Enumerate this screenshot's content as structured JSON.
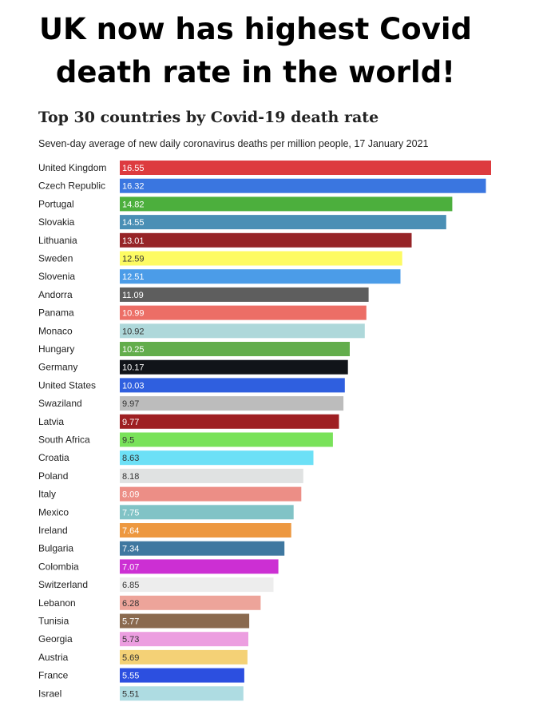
{
  "headline": {
    "line1": "UK now has highest Covid",
    "line2": "death rate in the world!"
  },
  "chart_data": {
    "type": "bar",
    "orientation": "horizontal",
    "title": "Top 30 countries by Covid-19 death rate",
    "subtitle": "Seven-day average of new daily coronavirus deaths per million people, 17 January 2021",
    "xlim": [
      0,
      16.55
    ],
    "grid": false,
    "legend": "none",
    "categories": [
      "United Kingdom",
      "Czech Republic",
      "Portugal",
      "Slovakia",
      "Lithuania",
      "Sweden",
      "Slovenia",
      "Andorra",
      "Panama",
      "Monaco",
      "Hungary",
      "Germany",
      "United States",
      "Swaziland",
      "Latvia",
      "South Africa",
      "Croatia",
      "Poland",
      "Italy",
      "Mexico",
      "Ireland",
      "Bulgaria",
      "Colombia",
      "Switzerland",
      "Lebanon",
      "Tunisia",
      "Georgia",
      "Austria",
      "France",
      "Israel"
    ],
    "values": [
      16.55,
      16.32,
      14.82,
      14.55,
      13.01,
      12.59,
      12.51,
      11.09,
      10.99,
      10.92,
      10.25,
      10.17,
      10.03,
      9.97,
      9.77,
      9.5,
      8.63,
      8.18,
      8.09,
      7.75,
      7.64,
      7.34,
      7.07,
      6.85,
      6.28,
      5.77,
      5.73,
      5.69,
      5.55,
      5.51
    ],
    "value_labels": [
      "16.55",
      "16.32",
      "14.82",
      "14.55",
      "13.01",
      "12.59",
      "12.51",
      "11.09",
      "10.99",
      "10.92",
      "10.25",
      "10.17",
      "10.03",
      "9.97",
      "9.77",
      "9.5",
      "8.63",
      "8.18",
      "8.09",
      "7.75",
      "7.64",
      "7.34",
      "7.07",
      "6.85",
      "6.28",
      "5.77",
      "5.73",
      "5.69",
      "5.55",
      "5.51"
    ],
    "colors": [
      "#dd3b3f",
      "#3a76e0",
      "#4caf3d",
      "#4a8fb5",
      "#962427",
      "#fdfb63",
      "#4b9ce8",
      "#5e5e5e",
      "#ec6e66",
      "#aed8da",
      "#63ad4c",
      "#111419",
      "#2f5fdf",
      "#bcbcbc",
      "#9e1f22",
      "#79e25a",
      "#6ce0f6",
      "#e0e2e2",
      "#ec8e86",
      "#81c3c6",
      "#ed9840",
      "#3f78a0",
      "#cc2fd3",
      "#ededed",
      "#eda49a",
      "#8a6a4f",
      "#ec9ee0",
      "#f4d176",
      "#2c4fe0",
      "#aedce2"
    ],
    "label_colors": [
      "#ffffff",
      "#ffffff",
      "#ffffff",
      "#ffffff",
      "#ffffff",
      "#333333",
      "#ffffff",
      "#ffffff",
      "#ffffff",
      "#333333",
      "#ffffff",
      "#ffffff",
      "#ffffff",
      "#333333",
      "#ffffff",
      "#333333",
      "#333333",
      "#333333",
      "#ffffff",
      "#ffffff",
      "#ffffff",
      "#ffffff",
      "#ffffff",
      "#333333",
      "#333333",
      "#ffffff",
      "#333333",
      "#333333",
      "#ffffff",
      "#333333"
    ]
  }
}
